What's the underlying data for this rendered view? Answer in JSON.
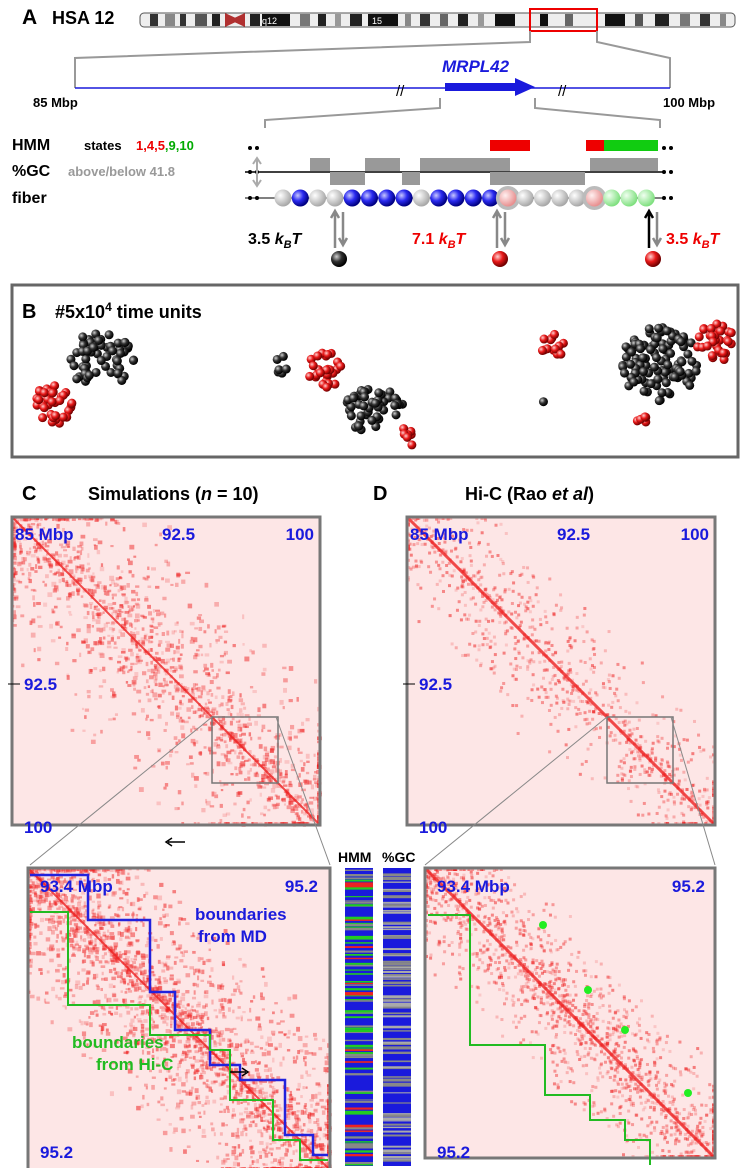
{
  "panel_a": {
    "letter": "A",
    "chromosome": "HSA 12",
    "bands": [
      "q12",
      "15"
    ],
    "gene": "MRPL42",
    "range_start": "85 Mbp",
    "range_end": "100 Mbp",
    "hmm_label": "HMM",
    "states_label": "states",
    "states": [
      "1",
      ",4",
      ",5",
      ",9",
      ",10"
    ],
    "gc_label": "%GC",
    "gc_note": "above/below 41.8",
    "fiber_label": "fiber",
    "energies": [
      {
        "value": "3.5 ",
        "k": "k",
        "sub": "B",
        "T": "T"
      },
      {
        "value": "7.1 ",
        "k": "k",
        "sub": "B",
        "T": "T"
      },
      {
        "value": "3.5 ",
        "k": "k",
        "sub": "B",
        "T": "T"
      }
    ]
  },
  "panel_b": {
    "letter": "B",
    "title": "#5x10",
    "exponent": "4",
    "title_end": " time units"
  },
  "panel_c": {
    "letter": "C",
    "title": "Simulations (",
    "n": "n",
    "title_end": " = 10)",
    "labels": [
      "85 Mbp",
      "92.5",
      "100",
      "92.5",
      "100"
    ],
    "zoom_labels": [
      "93.4 Mbp",
      "95.2",
      "95.2"
    ],
    "md_boundaries": [
      "boundaries",
      "from MD"
    ],
    "hic_boundaries": [
      "boundaries",
      "from Hi-C"
    ],
    "tracks": [
      "HMM",
      "%GC"
    ]
  },
  "panel_d": {
    "letter": "D",
    "title": "Hi-C (Rao ",
    "etal": "et al",
    "title_end": ")",
    "labels": [
      "85 Mbp",
      "92.5",
      "100",
      "92.5",
      "100"
    ],
    "zoom_labels": [
      "93.4 Mbp",
      "95.2",
      "95.2"
    ]
  }
}
